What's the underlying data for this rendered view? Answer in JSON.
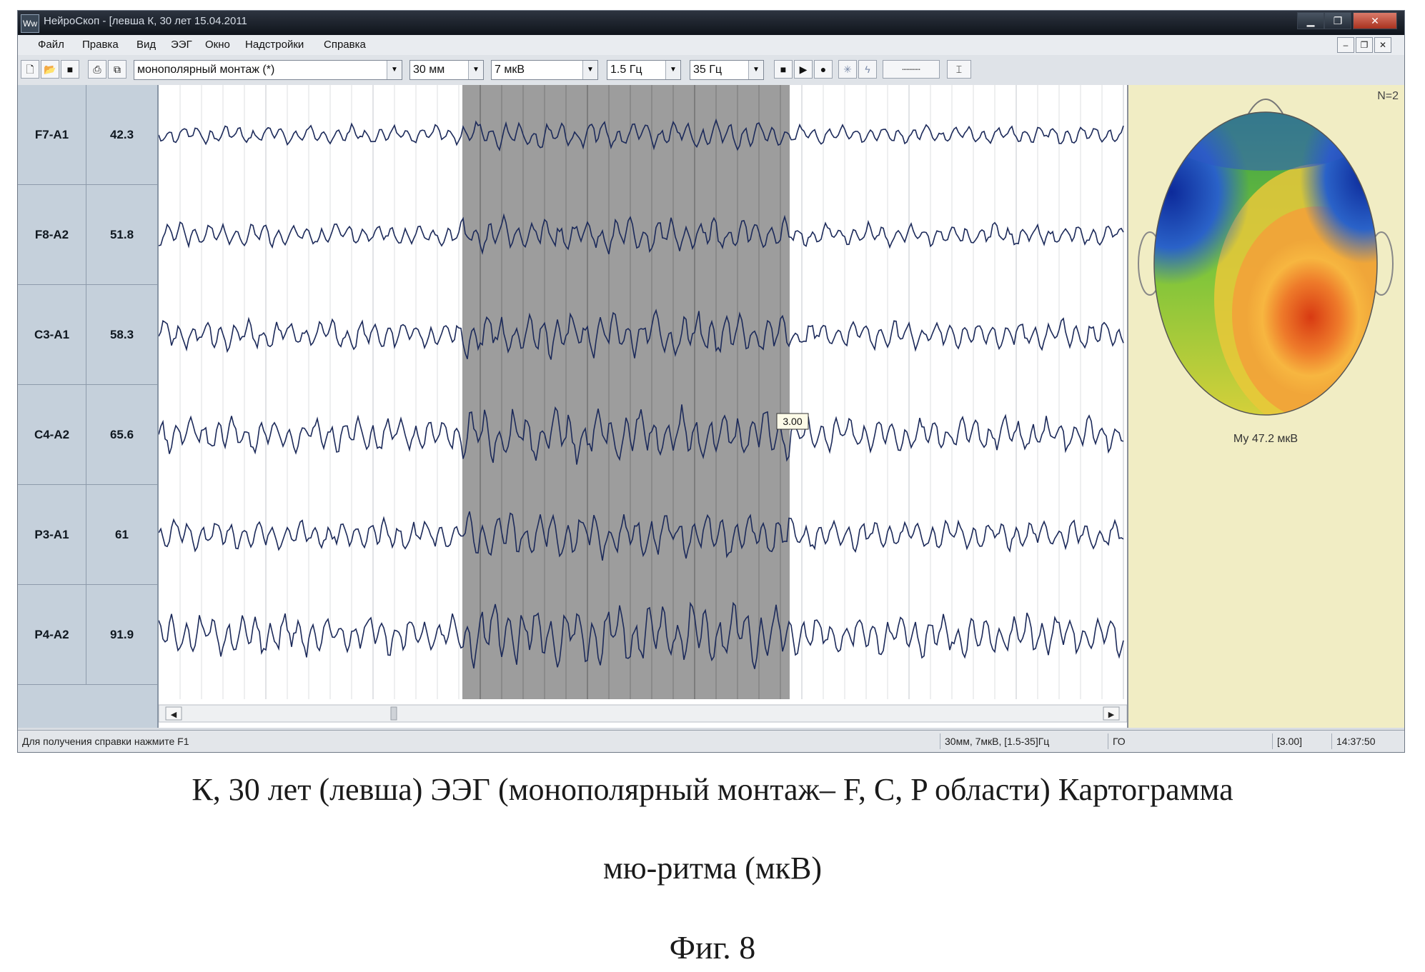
{
  "window": {
    "title": "НейроСкоп - [левша К, 30 лет 15.04.2011",
    "app_icon": "Ww"
  },
  "menu": [
    "Файл",
    "Правка",
    "Вид",
    "ЭЭГ",
    "Окно",
    "Надстройки",
    "Справка"
  ],
  "toolbar": {
    "montage": "монополярный монтаж (*)",
    "speed": "30 мм",
    "sensitivity": "7 мкВ",
    "low_filter": "1.5 Гц",
    "high_filter": "35 Гц"
  },
  "channels": [
    {
      "name": "F7-A1",
      "value": "42.3"
    },
    {
      "name": "F8-A2",
      "value": "51.8"
    },
    {
      "name": "C3-A1",
      "value": "58.3"
    },
    {
      "name": "C4-A2",
      "value": "65.6"
    },
    {
      "name": "P3-A1",
      "value": "61"
    },
    {
      "name": "P4-A2",
      "value": "91.9"
    }
  ],
  "cursor_label": "3.00",
  "map": {
    "n_label": "N=2",
    "caption": "Му 47.2 мкВ",
    "colors": {
      "low": "#1f3fb0",
      "mid": "#3aa83a",
      "high": "#e04a1a",
      "bg": "#f1edc4"
    }
  },
  "status": {
    "help": "Для получения справки нажмите F1",
    "params": "30мм, 7мкВ, [1.5-35]Гц",
    "mode": "ГО",
    "cursor": "[3.00]",
    "time": "14:37:50"
  },
  "figure": {
    "caption_line1": "К, 30 лет (левша) ЭЭГ (монополярный монтаж– F, C, P области) Картограмма",
    "caption_line2": "мю-ритма (мкВ)",
    "fig_label": "Фиг. 8"
  }
}
